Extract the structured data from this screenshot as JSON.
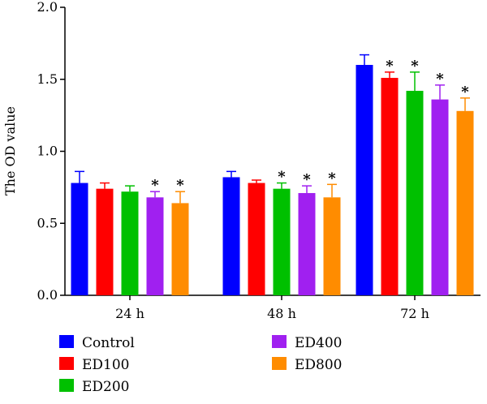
{
  "chart_data": {
    "type": "bar",
    "title": "",
    "xlabel": "",
    "ylabel": "The OD value",
    "ylim": [
      0,
      2.0
    ],
    "yticks": [
      "0.0",
      "0.5",
      "1.0",
      "1.5",
      "2.0"
    ],
    "categories": [
      "24 h",
      "48 h",
      "72 h"
    ],
    "grid": false,
    "legend_position": "bottom",
    "significance_marker": "*",
    "series": [
      {
        "name": "Control",
        "color": "#0000ff",
        "values": [
          0.78,
          0.82,
          1.6
        ],
        "errors": [
          0.08,
          0.04,
          0.07
        ],
        "significant": [
          false,
          false,
          false
        ]
      },
      {
        "name": "ED100",
        "color": "#ff0000",
        "values": [
          0.74,
          0.78,
          1.51
        ],
        "errors": [
          0.04,
          0.02,
          0.04
        ],
        "significant": [
          false,
          false,
          true
        ]
      },
      {
        "name": "ED200",
        "color": "#00c000",
        "values": [
          0.72,
          0.74,
          1.42
        ],
        "errors": [
          0.04,
          0.04,
          0.13
        ],
        "significant": [
          false,
          true,
          true
        ]
      },
      {
        "name": "ED400",
        "color": "#a020f0",
        "values": [
          0.68,
          0.71,
          1.36
        ],
        "errors": [
          0.04,
          0.05,
          0.1
        ],
        "significant": [
          true,
          true,
          true
        ]
      },
      {
        "name": "ED800",
        "color": "#ff8c00",
        "values": [
          0.64,
          0.68,
          1.28
        ],
        "errors": [
          0.08,
          0.09,
          0.09
        ],
        "significant": [
          true,
          true,
          true
        ]
      }
    ]
  }
}
